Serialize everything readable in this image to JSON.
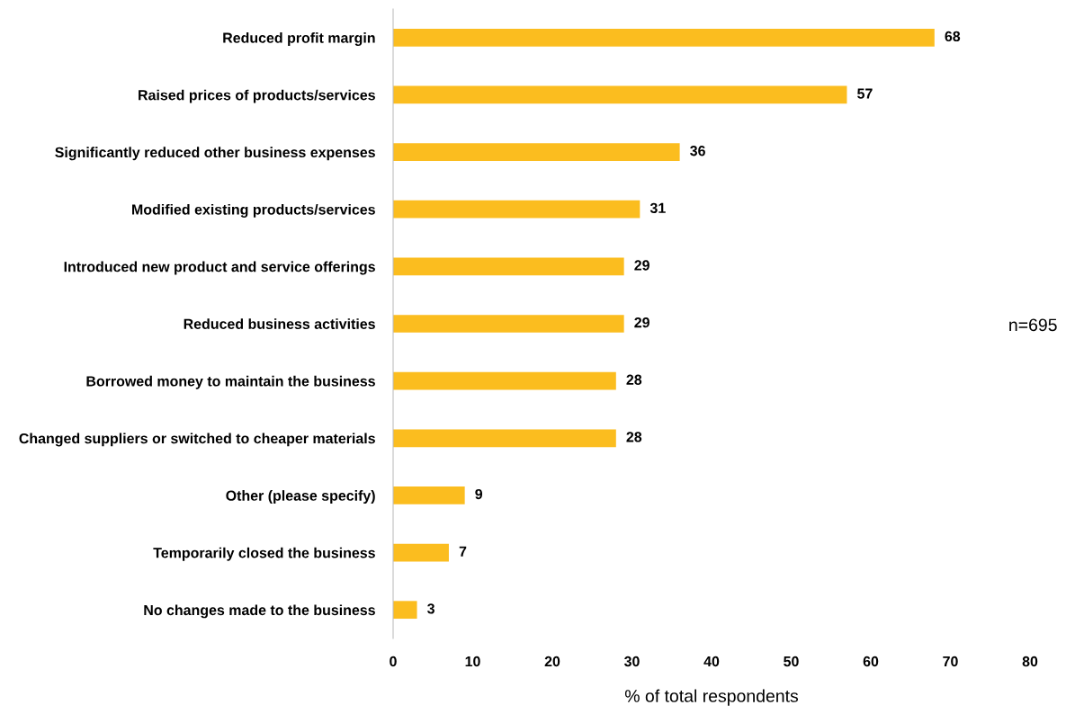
{
  "chart_data": {
    "type": "bar",
    "orientation": "horizontal",
    "xlabel": "% of total respondents",
    "categories": [
      "Reduced profit margin",
      "Raised prices of products/services",
      "Significantly reduced other business expenses",
      "Modified existing products/services",
      "Introduced new product and service offerings",
      "Reduced business activities",
      "Borrowed money to maintain the business",
      "Changed suppliers or switched to cheaper materials",
      "Other (please specify)",
      "Temporarily closed the business",
      "No changes made to the business"
    ],
    "values": [
      68,
      57,
      36,
      31,
      29,
      29,
      28,
      28,
      9,
      7,
      3
    ],
    "color": "#fbbd1f",
    "xlim": [
      0,
      80
    ],
    "xticks": [
      0,
      10,
      20,
      30,
      40,
      50,
      60,
      70,
      80
    ],
    "data_labels": true,
    "grid": false,
    "legend": false,
    "annotations": [
      "n=695"
    ]
  }
}
